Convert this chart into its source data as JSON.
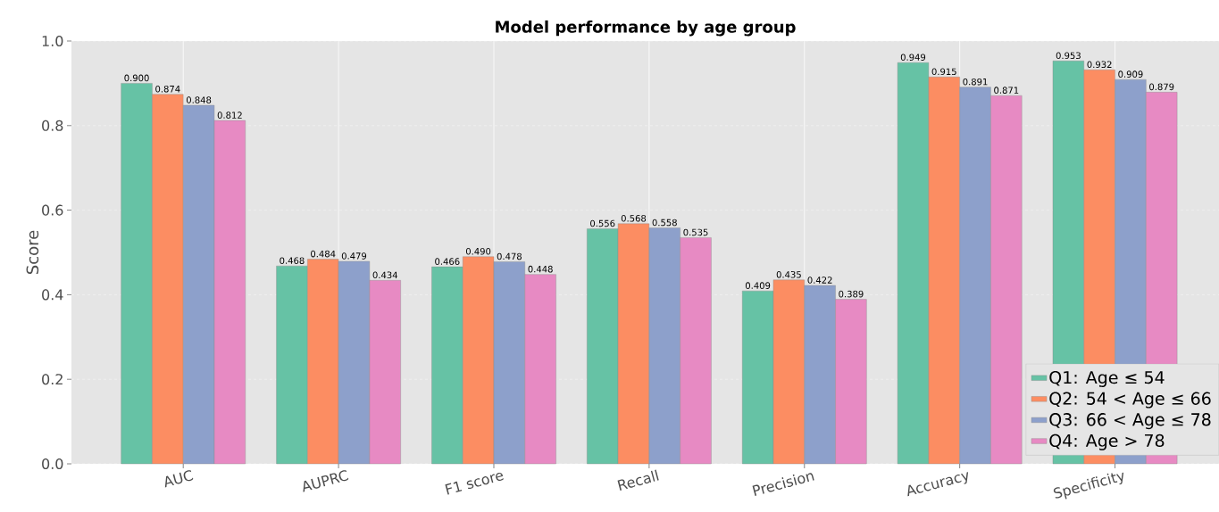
{
  "chart_data": {
    "type": "bar",
    "title": "Model performance by age group",
    "ylabel": "Score",
    "categories": [
      "AUC",
      "AUPRC",
      "F1 score",
      "Recall",
      "Precision",
      "Accuracy",
      "Specificity"
    ],
    "series": [
      {
        "name": "Q1: Age ≤ 54",
        "color": "#66c2a5",
        "values": [
          0.9,
          0.468,
          0.466,
          0.556,
          0.409,
          0.949,
          0.953
        ],
        "value_labels": [
          "0.900",
          "0.468",
          "0.466",
          "0.556",
          "0.409",
          "0.949",
          "0.953"
        ]
      },
      {
        "name": "Q2: 54 < Age ≤ 66",
        "color": "#fc8d62",
        "values": [
          0.874,
          0.484,
          0.49,
          0.568,
          0.435,
          0.915,
          0.932
        ],
        "value_labels": [
          "0.874",
          "0.484",
          "0.490",
          "0.568",
          "0.435",
          "0.915",
          "0.932"
        ]
      },
      {
        "name": "Q3: 66 < Age ≤ 78",
        "color": "#8da0cb",
        "values": [
          0.848,
          0.479,
          0.478,
          0.558,
          0.422,
          0.891,
          0.909
        ],
        "value_labels": [
          "0.848",
          "0.479",
          "0.478",
          "0.558",
          "0.422",
          "0.891",
          "0.909"
        ]
      },
      {
        "name": "Q4: Age > 78",
        "color": "#e78ac3",
        "values": [
          0.812,
          0.434,
          0.448,
          0.535,
          0.389,
          0.871,
          0.879
        ],
        "value_labels": [
          "0.812",
          "0.434",
          "0.448",
          "0.535",
          "0.389",
          "0.871",
          "0.879"
        ]
      }
    ],
    "ylim": [
      0,
      1.0
    ],
    "yticks": [
      {
        "value": 0,
        "label": "0.0"
      },
      {
        "value": 0.2,
        "label": "0.2"
      },
      {
        "value": 0.4,
        "label": "0.4"
      },
      {
        "value": 0.6,
        "label": "0.6"
      },
      {
        "value": 0.8,
        "label": "0.8"
      },
      {
        "value": 1.0,
        "label": "1.0"
      }
    ],
    "grid": true,
    "legend": "bottom right"
  }
}
